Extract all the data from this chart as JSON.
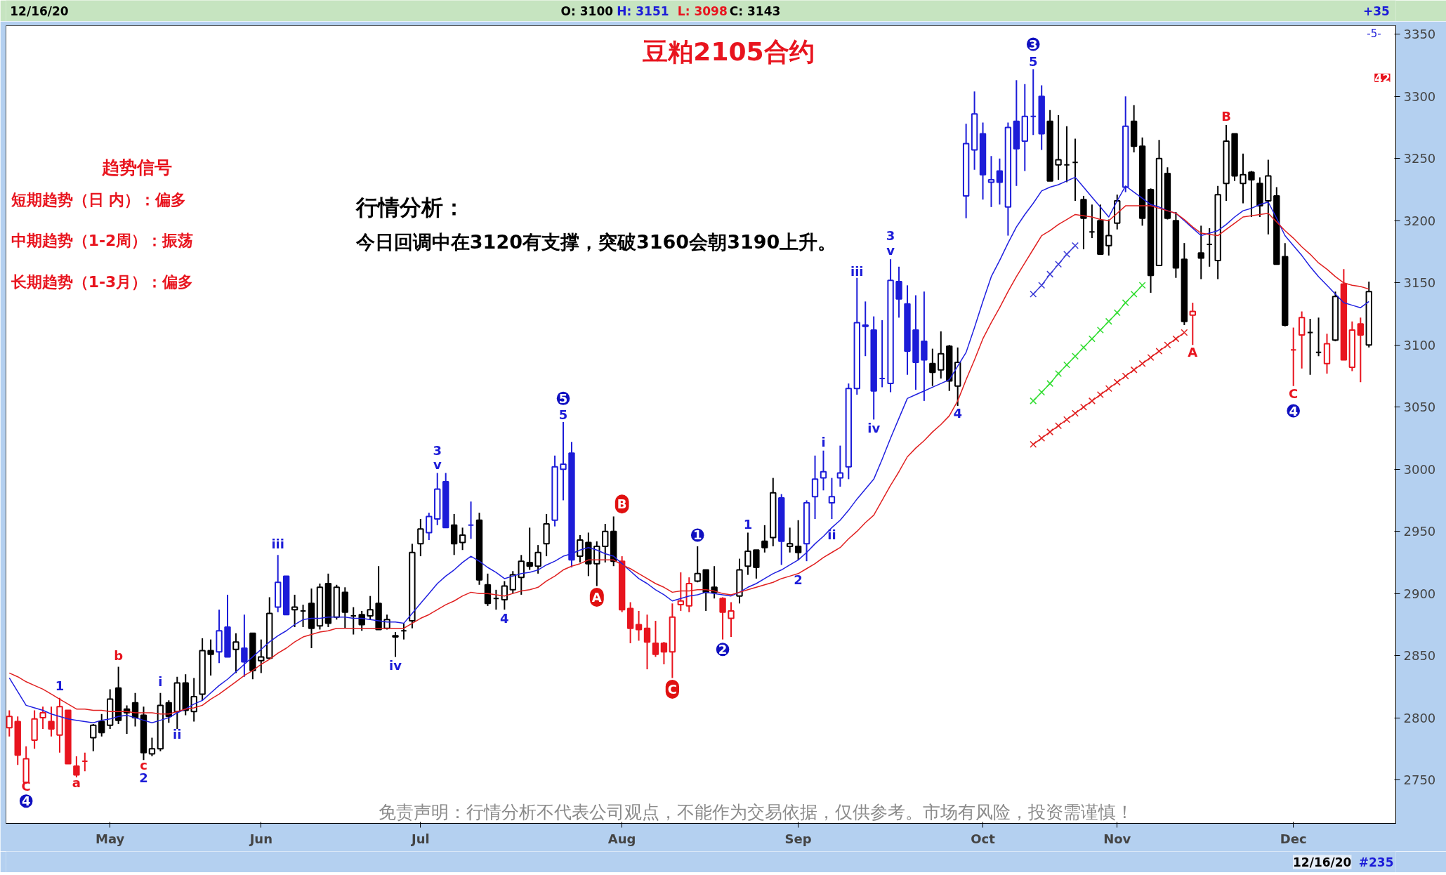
{
  "chart_data": {
    "type": "candlestick",
    "title": "豆粕2105合约",
    "categories": [
      null,
      null,
      null,
      null,
      null,
      null,
      null,
      null,
      null,
      null,
      null,
      null,
      "May",
      null,
      null,
      null,
      null,
      null,
      null,
      null,
      null,
      null,
      null,
      null,
      null,
      null,
      null,
      null,
      null,
      null,
      "Jun",
      null,
      null,
      null,
      null,
      null,
      null,
      null,
      null,
      null,
      null,
      null,
      null,
      null,
      null,
      null,
      null,
      null,
      null,
      "Jul",
      null,
      null,
      null,
      null,
      null,
      null,
      null,
      null,
      null,
      null,
      null,
      null,
      null,
      null,
      null,
      null,
      null,
      null,
      null,
      null,
      null,
      null,
      null,
      "Aug",
      null,
      null,
      null,
      null,
      null,
      null,
      null,
      null,
      null,
      null,
      null,
      null,
      null,
      null,
      null,
      null,
      null,
      null,
      null,
      null,
      "Sep",
      null,
      null,
      null,
      null,
      null,
      null,
      null,
      null,
      null,
      null,
      null,
      null,
      null,
      null,
      null,
      null,
      null,
      null,
      null,
      null,
      null,
      "Oct",
      null,
      null,
      null,
      null,
      null,
      null,
      null,
      null,
      null,
      null,
      null,
      null,
      null,
      null,
      null,
      "Nov",
      null,
      null,
      null,
      null,
      null,
      null,
      null,
      null,
      null,
      null,
      null,
      null,
      null,
      null,
      null,
      null,
      null,
      null,
      null,
      null,
      "Dec",
      null,
      null,
      null,
      null,
      null,
      null,
      null,
      null,
      null
    ],
    "ohlc": [
      [
        2792,
        2806,
        2785,
        2801
      ],
      [
        2797,
        2801,
        2762,
        2770
      ],
      [
        2748,
        2777,
        2747,
        2767
      ],
      [
        2782,
        2806,
        2775,
        2799
      ],
      [
        2800,
        2809,
        2791,
        2804
      ],
      [
        2797,
        2809,
        2785,
        2791
      ],
      [
        2786,
        2816,
        2772,
        2809
      ],
      [
        2806,
        2806,
        2763,
        2763
      ],
      [
        2761,
        2769,
        2752,
        2754
      ],
      [
        2765,
        2772,
        2757,
        2765
      ],
      [
        2784,
        2795,
        2773,
        2794
      ],
      [
        2797,
        2803,
        2785,
        2788
      ],
      [
        2794,
        2823,
        2791,
        2815
      ],
      [
        2824,
        2841,
        2795,
        2798
      ],
      [
        2807,
        2810,
        2787,
        2804
      ],
      [
        2812,
        2820,
        2793,
        2800
      ],
      [
        2802,
        2809,
        2766,
        2772
      ],
      [
        2771,
        2784,
        2769,
        2775
      ],
      [
        2775,
        2820,
        2773,
        2810
      ],
      [
        2812,
        2814,
        2796,
        2801
      ],
      [
        2805,
        2833,
        2791,
        2828
      ],
      [
        2828,
        2835,
        2802,
        2806
      ],
      [
        2805,
        2832,
        2797,
        2817
      ],
      [
        2819,
        2864,
        2814,
        2854
      ],
      [
        2854,
        2863,
        2834,
        2851
      ],
      [
        2853,
        2887,
        2844,
        2870
      ],
      [
        2873,
        2899,
        2849,
        2849
      ],
      [
        2855,
        2868,
        2836,
        2861
      ],
      [
        2856,
        2883,
        2833,
        2845
      ],
      [
        2868,
        2868,
        2831,
        2838
      ],
      [
        2846,
        2863,
        2836,
        2849
      ],
      [
        2848,
        2897,
        2848,
        2884
      ],
      [
        2889,
        2931,
        2885,
        2909
      ],
      [
        2914,
        2914,
        2883,
        2883
      ],
      [
        2887,
        2899,
        2873,
        2889
      ],
      [
        2886,
        2891,
        2873,
        2886
      ],
      [
        2892,
        2904,
        2856,
        2872
      ],
      [
        2874,
        2908,
        2871,
        2905
      ],
      [
        2908,
        2916,
        2873,
        2876
      ],
      [
        2881,
        2907,
        2879,
        2905
      ],
      [
        2901,
        2905,
        2872,
        2885
      ],
      [
        2882,
        2889,
        2867,
        2882
      ],
      [
        2883,
        2886,
        2870,
        2875
      ],
      [
        2882,
        2898,
        2879,
        2887
      ],
      [
        2892,
        2922,
        2871,
        2871
      ],
      [
        2872,
        2883,
        2871,
        2879
      ],
      [
        2866,
        2869,
        2849,
        2865
      ],
      [
        2870,
        2876,
        2863,
        2870
      ],
      [
        2878,
        2940,
        2872,
        2933
      ],
      [
        2940,
        2960,
        2930,
        2952
      ],
      [
        2949,
        2965,
        2943,
        2962
      ],
      [
        2960,
        2997,
        2955,
        2984
      ],
      [
        2990,
        2997,
        2953,
        2953
      ],
      [
        2955,
        2964,
        2931,
        2940
      ],
      [
        2941,
        2953,
        2935,
        2947
      ],
      [
        2955,
        2974,
        2944,
        2955
      ],
      [
        2959,
        2965,
        2907,
        2911
      ],
      [
        2907,
        2916,
        2890,
        2892
      ],
      [
        2896,
        2903,
        2887,
        2896
      ],
      [
        2895,
        2910,
        2887,
        2906
      ],
      [
        2903,
        2918,
        2900,
        2915
      ],
      [
        2913,
        2931,
        2899,
        2926
      ],
      [
        2925,
        2953,
        2919,
        2922
      ],
      [
        2922,
        2939,
        2916,
        2933
      ],
      [
        2940,
        2964,
        2930,
        2956
      ],
      [
        2959,
        3011,
        2954,
        3002
      ],
      [
        3000,
        3038,
        2975,
        3004
      ],
      [
        3013,
        3022,
        2921,
        2927
      ],
      [
        2930,
        2947,
        2925,
        2943
      ],
      [
        2941,
        2949,
        2914,
        2924
      ],
      [
        2924,
        2942,
        2906,
        2938
      ],
      [
        2938,
        2956,
        2925,
        2950
      ],
      [
        2950,
        2962,
        2922,
        2926
      ],
      [
        2926,
        2930,
        2885,
        2887
      ],
      [
        2888,
        2893,
        2860,
        2872
      ],
      [
        2875,
        2886,
        2862,
        2871
      ],
      [
        2872,
        2883,
        2839,
        2861
      ],
      [
        2860,
        2878,
        2849,
        2851
      ],
      [
        2860,
        2861,
        2843,
        2853
      ],
      [
        2853,
        2892,
        2832,
        2881
      ],
      [
        2891,
        2917,
        2886,
        2894
      ],
      [
        2890,
        2913,
        2885,
        2908
      ],
      [
        2910,
        2938,
        2909,
        2916
      ],
      [
        2919,
        2919,
        2886,
        2901
      ],
      [
        2905,
        2922,
        2896,
        2901
      ],
      [
        2896,
        2897,
        2863,
        2885
      ],
      [
        2880,
        2893,
        2865,
        2886
      ],
      [
        2898,
        2928,
        2892,
        2919
      ],
      [
        2922,
        2949,
        2915,
        2934
      ],
      [
        2935,
        2935,
        2912,
        2921
      ],
      [
        2942,
        2955,
        2933,
        2937
      ],
      [
        2945,
        2993,
        2938,
        2981
      ],
      [
        2977,
        2980,
        2923,
        2942
      ],
      [
        2938,
        2953,
        2933,
        2940
      ],
      [
        2938,
        2959,
        2927,
        2933
      ],
      [
        2940,
        2975,
        2926,
        2973
      ],
      [
        2978,
        3011,
        2960,
        2992
      ],
      [
        2993,
        3015,
        2983,
        2998
      ],
      [
        2973,
        2993,
        2960,
        2978
      ],
      [
        2993,
        3019,
        2986,
        2997
      ],
      [
        3002,
        3069,
        2992,
        3065
      ],
      [
        3065,
        3154,
        3060,
        3118
      ],
      [
        3115,
        3135,
        3091,
        3116
      ],
      [
        3112,
        3123,
        3040,
        3063
      ],
      [
        3073,
        3120,
        3066,
        3073
      ],
      [
        3069,
        3169,
        3062,
        3152
      ],
      [
        3151,
        3163,
        3122,
        3137
      ],
      [
        3133,
        3148,
        3076,
        3095
      ],
      [
        3112,
        3140,
        3064,
        3086
      ],
      [
        3103,
        3143,
        3055,
        3088
      ],
      [
        3085,
        3097,
        3067,
        3078
      ],
      [
        3080,
        3111,
        3073,
        3093
      ],
      [
        3099,
        3100,
        3063,
        3071
      ],
      [
        3067,
        3098,
        3051,
        3086
      ],
      [
        3220,
        3278,
        3202,
        3262
      ],
      [
        3257,
        3304,
        3241,
        3286
      ],
      [
        3270,
        3279,
        3217,
        3237
      ],
      [
        3231,
        3252,
        3211,
        3233
      ],
      [
        3240,
        3250,
        3213,
        3231
      ],
      [
        3211,
        3279,
        3188,
        3275
      ],
      [
        3280,
        3313,
        3228,
        3258
      ],
      [
        3264,
        3310,
        3240,
        3284
      ],
      [
        3284,
        3322,
        3269,
        3284
      ],
      [
        3300,
        3309,
        3257,
        3270
      ],
      [
        3280,
        3289,
        3232,
        3232
      ],
      [
        3245,
        3285,
        3233,
        3249
      ],
      [
        3245,
        3276,
        3231,
        3245
      ],
      [
        3247,
        3266,
        3216,
        3247
      ],
      [
        3217,
        3220,
        3177,
        3202
      ],
      [
        3191,
        3213,
        3186,
        3191
      ],
      [
        3200,
        3213,
        3173,
        3173
      ],
      [
        3180,
        3201,
        3172,
        3188
      ],
      [
        3198,
        3221,
        3193,
        3216
      ],
      [
        3227,
        3300,
        3223,
        3276
      ],
      [
        3280,
        3293,
        3255,
        3260
      ],
      [
        3260,
        3267,
        3196,
        3202
      ],
      [
        3225,
        3226,
        3142,
        3156
      ],
      [
        3164,
        3265,
        3164,
        3250
      ],
      [
        3238,
        3243,
        3201,
        3202
      ],
      [
        3200,
        3207,
        3154,
        3162
      ],
      [
        3169,
        3182,
        3116,
        3119
      ],
      [
        3124,
        3134,
        3100,
        3127
      ],
      [
        3174,
        3196,
        3153,
        3170
      ],
      [
        3181,
        3194,
        3163,
        3181
      ],
      [
        3168,
        3228,
        3153,
        3221
      ],
      [
        3230,
        3277,
        3216,
        3264
      ],
      [
        3270,
        3270,
        3232,
        3236
      ],
      [
        3230,
        3254,
        3214,
        3237
      ],
      [
        3239,
        3240,
        3203,
        3233
      ],
      [
        3230,
        3235,
        3203,
        3212
      ],
      [
        3216,
        3249,
        3189,
        3236
      ],
      [
        3220,
        3227,
        3165,
        3165
      ],
      [
        3171,
        3182,
        3115,
        3116
      ],
      [
        3096,
        3114,
        3067,
        3096
      ],
      [
        3108,
        3127,
        3081,
        3122
      ],
      [
        3110,
        3121,
        3076,
        3110
      ],
      [
        3094,
        3122,
        3091,
        3094
      ],
      [
        3085,
        3109,
        3077,
        3101
      ],
      [
        3104,
        3143,
        3103,
        3139
      ],
      [
        3149,
        3161,
        3088,
        3088
      ],
      [
        3082,
        3119,
        3079,
        3112
      ],
      [
        3117,
        3122,
        3070,
        3108
      ],
      [
        3100,
        3151,
        3098,
        3143
      ]
    ],
    "colors": [
      "#e8141e",
      "#e8141e",
      "#e8141e",
      "#e8141e",
      "#e8141e",
      "#e8141e",
      "#e8141e",
      "#e8141e",
      "#e8141e",
      "#e8141e",
      "#000000",
      "#000000",
      "#000000",
      "#000000",
      "#000000",
      "#000000",
      "#000000",
      "#000000",
      "#000000",
      "#000000",
      "#000000",
      "#000000",
      "#000000",
      "#000000",
      "#000000",
      "#1c1cd8",
      "#1c1cd8",
      "#000000",
      "#1c1cd8",
      "#000000",
      "#000000",
      "#000000",
      "#1c1cd8",
      "#1c1cd8",
      "#000000",
      "#000000",
      "#000000",
      "#000000",
      "#000000",
      "#000000",
      "#000000",
      "#000000",
      "#000000",
      "#000000",
      "#000000",
      "#000000",
      "#000000",
      "#000000",
      "#000000",
      "#000000",
      "#1c1cd8",
      "#1c1cd8",
      "#1c1cd8",
      "#000000",
      "#000000",
      "#1c1cd8",
      "#000000",
      "#000000",
      "#000000",
      "#000000",
      "#000000",
      "#000000",
      "#000000",
      "#000000",
      "#000000",
      "#1c1cd8",
      "#1c1cd8",
      "#1c1cd8",
      "#000000",
      "#000000",
      "#000000",
      "#000000",
      "#000000",
      "#e8141e",
      "#e8141e",
      "#e8141e",
      "#e8141e",
      "#e8141e",
      "#e8141e",
      "#e8141e",
      "#e8141e",
      "#e8141e",
      "#000000",
      "#000000",
      "#000000",
      "#e8141e",
      "#e8141e",
      "#000000",
      "#000000",
      "#000000",
      "#000000",
      "#000000",
      "#1c1cd8",
      "#000000",
      "#000000",
      "#1c1cd8",
      "#1c1cd8",
      "#1c1cd8",
      "#1c1cd8",
      "#1c1cd8",
      "#1c1cd8",
      "#1c1cd8",
      "#1c1cd8",
      "#1c1cd8",
      "#1c1cd8",
      "#1c1cd8",
      "#1c1cd8",
      "#1c1cd8",
      "#1c1cd8",
      "#1c1cd8",
      "#000000",
      "#000000",
      "#000000",
      "#000000",
      "#1c1cd8",
      "#1c1cd8",
      "#1c1cd8",
      "#1c1cd8",
      "#1c1cd8",
      "#1c1cd8",
      "#1c1cd8",
      "#1c1cd8",
      "#1c1cd8",
      "#1c1cd8",
      "#000000",
      "#000000",
      "#000000",
      "#000000",
      "#000000",
      "#000000",
      "#000000",
      "#000000",
      "#000000",
      "#1c1cd8",
      "#000000",
      "#000000",
      "#000000",
      "#000000",
      "#000000",
      "#000000",
      "#000000",
      "#e8141e",
      "#000000",
      "#000000",
      "#000000",
      "#000000",
      "#000000",
      "#000000",
      "#000000",
      "#000000",
      "#000000",
      "#000000",
      "#000000",
      "#e8141e",
      "#e8141e",
      "#000000",
      "#000000",
      "#e8141e",
      "#000000",
      "#e8141e",
      "#e8141e",
      "#e8141e",
      "#000000"
    ],
    "series": [
      {
        "type": "line",
        "color": "#2020e0",
        "marker": "none",
        "values": [
          2832,
          2821,
          2810,
          2808,
          2806,
          2803,
          2801,
          2799,
          2798,
          2797,
          2796,
          2798,
          2799,
          2801,
          2802,
          2800,
          2798,
          2796,
          2798,
          2800,
          2804,
          2807,
          2811,
          2814,
          2820,
          2826,
          2831,
          2837,
          2843,
          2849,
          2855,
          2861,
          2866,
          2870,
          2875,
          2879,
          2880,
          2880,
          2881,
          2881,
          2881,
          2880,
          2880,
          2879,
          2878,
          2877,
          2877,
          2876,
          2884,
          2892,
          2900,
          2908,
          2914,
          2919,
          2925,
          2930,
          2926,
          2921,
          2917,
          2912,
          2914,
          2916,
          2917,
          2919,
          2923,
          2926,
          2930,
          2932,
          2935,
          2937,
          2935,
          2932,
          2930,
          2924,
          2918,
          2912,
          2908,
          2903,
          2899,
          2894,
          2896,
          2898,
          2899,
          2901,
          2900,
          2899,
          2898,
          2901,
          2905,
          2908,
          2912,
          2916,
          2919,
          2923,
          2927,
          2933,
          2940,
          2946,
          2953,
          2959,
          2967,
          2976,
          2984,
          2992,
          3008,
          3025,
          3041,
          3057,
          3060,
          3063,
          3066,
          3069,
          3072,
          3083,
          3094,
          3114,
          3135,
          3155,
          3168,
          3182,
          3195,
          3205,
          3214,
          3224,
          3227,
          3229,
          3232,
          3235,
          3227,
          3219,
          3211,
          3203,
          3216,
          3228,
          3223,
          3218,
          3213,
          3211,
          3208,
          3206,
          3200,
          3194,
          3188,
          3190,
          3192,
          3197,
          3203,
          3208,
          3210,
          3213,
          3215,
          3202,
          3188,
          3180,
          3172,
          3163,
          3155,
          3148,
          3141,
          3134,
          3132,
          3130,
          3135
        ]
      },
      {
        "type": "line",
        "color": "#e02020",
        "marker": "none",
        "values": [
          2836,
          2833,
          2829,
          2826,
          2823,
          2819,
          2815,
          2811,
          2807,
          2807,
          2806,
          2806,
          2805,
          2805,
          2805,
          2804,
          2804,
          2804,
          2803,
          2803,
          2805,
          2807,
          2808,
          2810,
          2815,
          2819,
          2824,
          2829,
          2834,
          2838,
          2843,
          2847,
          2852,
          2856,
          2861,
          2865,
          2867,
          2869,
          2870,
          2872,
          2872,
          2872,
          2872,
          2872,
          2872,
          2872,
          2872,
          2872,
          2876,
          2880,
          2883,
          2887,
          2891,
          2894,
          2898,
          2901,
          2900,
          2900,
          2899,
          2898,
          2900,
          2902,
          2903,
          2905,
          2910,
          2914,
          2919,
          2922,
          2924,
          2927,
          2927,
          2927,
          2927,
          2923,
          2920,
          2916,
          2912,
          2908,
          2905,
          2901,
          2902,
          2902,
          2903,
          2903,
          2902,
          2900,
          2899,
          2901,
          2903,
          2905,
          2907,
          2909,
          2912,
          2914,
          2916,
          2920,
          2924,
          2929,
          2933,
          2937,
          2944,
          2950,
          2957,
          2963,
          2975,
          2987,
          2998,
          3010,
          3017,
          3023,
          3030,
          3036,
          3043,
          3055,
          3072,
          3088,
          3105,
          3118,
          3130,
          3143,
          3155,
          3166,
          3177,
          3188,
          3192,
          3197,
          3201,
          3205,
          3204,
          3203,
          3201,
          3200,
          3206,
          3212,
          3212,
          3212,
          3212,
          3210,
          3208,
          3206,
          3201,
          3195,
          3190,
          3189,
          3188,
          3193,
          3198,
          3203,
          3204,
          3205,
          3206,
          3199,
          3192,
          3186,
          3179,
          3173,
          3166,
          3161,
          3155,
          3150,
          3148,
          3147,
          3145
        ]
      },
      {
        "type": "line",
        "color": "#3b3bd6",
        "marker": "cross",
        "values": [
          null,
          null,
          null,
          null,
          null,
          null,
          null,
          null,
          null,
          null,
          null,
          null,
          null,
          null,
          null,
          null,
          null,
          null,
          null,
          null,
          null,
          null,
          null,
          null,
          null,
          null,
          null,
          null,
          null,
          null,
          null,
          null,
          null,
          null,
          null,
          null,
          null,
          null,
          null,
          null,
          null,
          null,
          null,
          null,
          null,
          null,
          null,
          null,
          null,
          null,
          null,
          null,
          null,
          null,
          null,
          null,
          null,
          null,
          null,
          null,
          null,
          null,
          null,
          null,
          null,
          null,
          null,
          null,
          null,
          null,
          null,
          null,
          null,
          null,
          null,
          null,
          null,
          null,
          null,
          null,
          null,
          null,
          null,
          null,
          null,
          null,
          null,
          null,
          null,
          null,
          null,
          null,
          null,
          null,
          null,
          null,
          null,
          null,
          null,
          null,
          null,
          null,
          null,
          null,
          null,
          null,
          null,
          null,
          null,
          null,
          null,
          null,
          null,
          null,
          null,
          null,
          null,
          null,
          null,
          null,
          null,
          null,
          3141,
          3148,
          3157,
          3165,
          3173,
          3180,
          null,
          null,
          null,
          null,
          null,
          null,
          null,
          null,
          null,
          null,
          null,
          null,
          null,
          null,
          null,
          null,
          null,
          null,
          null,
          null,
          null,
          null,
          null,
          null,
          null,
          null,
          null,
          null,
          null,
          null,
          null,
          null,
          null,
          null,
          null
        ]
      },
      {
        "type": "line",
        "color": "#33dd33",
        "marker": "cross",
        "values": [
          null,
          null,
          null,
          null,
          null,
          null,
          null,
          null,
          null,
          null,
          null,
          null,
          null,
          null,
          null,
          null,
          null,
          null,
          null,
          null,
          null,
          null,
          null,
          null,
          null,
          null,
          null,
          null,
          null,
          null,
          null,
          null,
          null,
          null,
          null,
          null,
          null,
          null,
          null,
          null,
          null,
          null,
          null,
          null,
          null,
          null,
          null,
          null,
          null,
          null,
          null,
          null,
          null,
          null,
          null,
          null,
          null,
          null,
          null,
          null,
          null,
          null,
          null,
          null,
          null,
          null,
          null,
          null,
          null,
          null,
          null,
          null,
          null,
          null,
          null,
          null,
          null,
          null,
          null,
          null,
          null,
          null,
          null,
          null,
          null,
          null,
          null,
          null,
          null,
          null,
          null,
          null,
          null,
          null,
          null,
          null,
          null,
          null,
          null,
          null,
          null,
          null,
          null,
          null,
          null,
          null,
          null,
          null,
          null,
          null,
          null,
          null,
          null,
          null,
          null,
          null,
          null,
          null,
          null,
          null,
          null,
          null,
          3055,
          3062,
          3069,
          3077,
          3084,
          3091,
          3098,
          3105,
          3112,
          3119,
          3126,
          3134,
          3141,
          3148,
          null,
          null,
          null,
          null,
          null,
          null,
          null,
          null,
          null,
          null,
          null,
          null,
          null,
          null,
          null,
          null,
          null,
          null,
          null,
          null,
          null,
          null,
          null,
          null,
          null,
          null,
          null
        ]
      },
      {
        "type": "line",
        "color": "#e02020",
        "marker": "cross",
        "values": [
          null,
          null,
          null,
          null,
          null,
          null,
          null,
          null,
          null,
          null,
          null,
          null,
          null,
          null,
          null,
          null,
          null,
          null,
          null,
          null,
          null,
          null,
          null,
          null,
          null,
          null,
          null,
          null,
          null,
          null,
          null,
          null,
          null,
          null,
          null,
          null,
          null,
          null,
          null,
          null,
          null,
          null,
          null,
          null,
          null,
          null,
          null,
          null,
          null,
          null,
          null,
          null,
          null,
          null,
          null,
          null,
          null,
          null,
          null,
          null,
          null,
          null,
          null,
          null,
          null,
          null,
          null,
          null,
          null,
          null,
          null,
          null,
          null,
          null,
          null,
          null,
          null,
          null,
          null,
          null,
          null,
          null,
          null,
          null,
          null,
          null,
          null,
          null,
          null,
          null,
          null,
          null,
          null,
          null,
          null,
          null,
          null,
          null,
          null,
          null,
          null,
          null,
          null,
          null,
          null,
          null,
          null,
          null,
          null,
          null,
          null,
          null,
          null,
          null,
          null,
          null,
          null,
          null,
          null,
          null,
          null,
          null,
          3020,
          3025,
          3030,
          3035,
          3040,
          3045,
          3050,
          3055,
          3060,
          3065,
          3070,
          3075,
          3080,
          3085,
          3090,
          3095,
          3100,
          3105,
          3110,
          null,
          null,
          null,
          null,
          null,
          null,
          null,
          null,
          null,
          null,
          null,
          null,
          null,
          null,
          null,
          null,
          null,
          null,
          null,
          null,
          null,
          null
        ]
      }
    ],
    "ylim": [
      2715,
      3357
    ],
    "yticks": [
      2750,
      2800,
      2850,
      2900,
      2950,
      3000,
      3050,
      3100,
      3150,
      3200,
      3250,
      3300,
      3350
    ],
    "annotations": [
      "趋势信号",
      "短期趋势（日 内）：偏多",
      "中期趋势（1-2周）：振荡",
      "长期趋势（1-3月）：偏多",
      "行情分析：",
      "今日回调中在3120有支撑，突破3160会朝3190上升。",
      "免责声明：行情分析不代表公司观点，不能作为交易依据，仅供参考。市场有风险，投资需谨慎！",
      "12/16/20",
      "O: 3100",
      "H: 3151",
      "L: 3098",
      "C: 3143",
      "+35",
      "-5-",
      "42",
      "12/16/20",
      "#235",
      "C",
      "4",
      "1",
      "a",
      "b",
      "c",
      "2",
      "i",
      "ii",
      "iii",
      "iv",
      "3",
      "v",
      "4",
      "5",
      "5",
      "B",
      "A",
      "C",
      "1",
      "2",
      "1",
      "2",
      "i",
      "ii",
      "iii",
      "iv",
      "3",
      "v",
      "4",
      "3",
      "5",
      "A",
      "B",
      "C",
      "4"
    ]
  }
}
